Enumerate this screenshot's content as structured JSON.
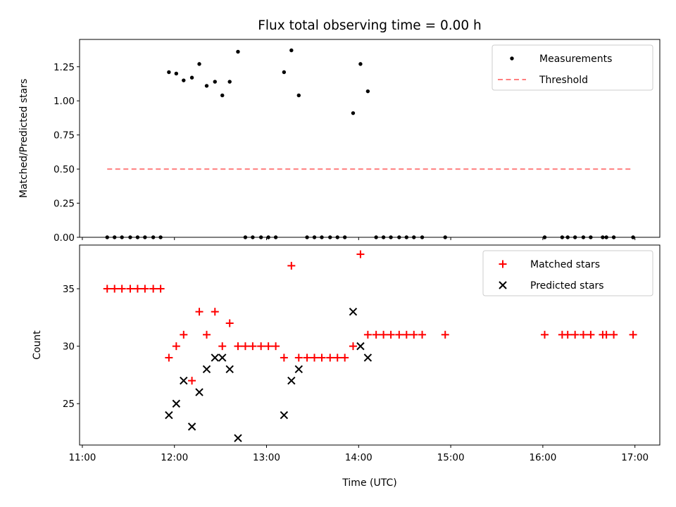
{
  "chart_data": {
    "title": "Flux total observing time = 0.00 h",
    "xlabel": "Time (UTC)",
    "x_tick_labels": [
      "11:00",
      "12:00",
      "13:00",
      "14:00",
      "15:00",
      "16:00",
      "17:00"
    ],
    "x_tick_hours": [
      11,
      12,
      13,
      14,
      15,
      16,
      17
    ],
    "xlim": [
      10.97,
      17.27
    ],
    "panels": [
      {
        "type": "scatter",
        "ylabel": "Matched/Predicted stars",
        "ylim": [
          0,
          1.45
        ],
        "y_ticks": [
          0.0,
          0.25,
          0.5,
          0.75,
          1.0,
          1.25
        ],
        "y_tick_labels": [
          "0.00",
          "0.25",
          "0.50",
          "0.75",
          "1.00",
          "1.25"
        ],
        "legend": "top-right",
        "series": [
          {
            "name": "Measurements",
            "marker": "dot",
            "color": "#000000",
            "x": [
              11.27,
              11.35,
              11.43,
              11.52,
              11.6,
              11.68,
              11.77,
              11.85,
              11.94,
              12.02,
              12.1,
              12.19,
              12.27,
              12.35,
              12.44,
              12.52,
              12.6,
              12.69,
              12.77,
              12.85,
              12.94,
              13.02,
              13.1,
              13.19,
              13.27,
              13.35,
              13.44,
              13.52,
              13.6,
              13.69,
              13.77,
              13.85,
              13.94,
              14.02,
              14.1,
              14.19,
              14.27,
              14.35,
              14.44,
              14.52,
              14.6,
              14.69,
              14.94,
              16.02,
              16.21,
              16.27,
              16.35,
              16.44,
              16.52,
              16.65,
              16.69,
              16.77,
              16.98
            ],
            "y": [
              0,
              0,
              0,
              0,
              0,
              0,
              0,
              0,
              1.21,
              1.2,
              1.15,
              1.17,
              1.27,
              1.11,
              1.14,
              1.04,
              1.14,
              1.36,
              0,
              0,
              0,
              0,
              0,
              1.21,
              1.37,
              1.04,
              0,
              0,
              0,
              0,
              0,
              0,
              0.91,
              1.27,
              1.07,
              0,
              0,
              0,
              0,
              0,
              0,
              0,
              0,
              0,
              0,
              0,
              0,
              0,
              0,
              0,
              0,
              0,
              0
            ]
          },
          {
            "name": "Threshold",
            "type": "line",
            "style": "dashed",
            "color": "#ff7f7f",
            "x": [
              11.27,
              16.98
            ],
            "y": [
              0.5,
              0.5
            ]
          }
        ]
      },
      {
        "type": "scatter",
        "ylabel": "Count",
        "ylim": [
          21.4,
          38.8
        ],
        "y_ticks": [
          25,
          30,
          35
        ],
        "y_tick_labels": [
          "25",
          "30",
          "35"
        ],
        "legend": "top-right",
        "series": [
          {
            "name": "Matched stars",
            "marker": "plus",
            "color": "#ff0000",
            "x": [
              11.27,
              11.35,
              11.43,
              11.52,
              11.6,
              11.68,
              11.77,
              11.85,
              11.94,
              12.02,
              12.1,
              12.19,
              12.27,
              12.35,
              12.44,
              12.52,
              12.6,
              12.69,
              12.77,
              12.85,
              12.94,
              13.02,
              13.1,
              13.19,
              13.27,
              13.35,
              13.44,
              13.52,
              13.6,
              13.69,
              13.77,
              13.85,
              13.94,
              14.02,
              14.1,
              14.19,
              14.27,
              14.35,
              14.44,
              14.52,
              14.6,
              14.69,
              14.94,
              16.02,
              16.21,
              16.27,
              16.35,
              16.44,
              16.52,
              16.65,
              16.69,
              16.77,
              16.98
            ],
            "y": [
              35,
              35,
              35,
              35,
              35,
              35,
              35,
              35,
              29,
              30,
              31,
              27,
              33,
              31,
              33,
              30,
              32,
              30,
              30,
              30,
              30,
              30,
              30,
              29,
              37,
              29,
              29,
              29,
              29,
              29,
              29,
              29,
              30,
              38,
              31,
              31,
              31,
              31,
              31,
              31,
              31,
              31,
              31,
              31,
              31,
              31,
              31,
              31,
              31,
              31,
              31,
              31,
              31
            ]
          },
          {
            "name": "Predicted stars",
            "marker": "x",
            "color": "#000000",
            "x": [
              11.94,
              12.02,
              12.1,
              12.19,
              12.27,
              12.35,
              12.44,
              12.52,
              12.6,
              12.69,
              13.19,
              13.27,
              13.35,
              13.94,
              14.02,
              14.1
            ],
            "y": [
              24,
              25,
              27,
              23,
              26,
              28,
              29,
              29,
              28,
              22,
              24,
              27,
              28,
              33,
              30,
              29
            ]
          }
        ]
      }
    ]
  }
}
